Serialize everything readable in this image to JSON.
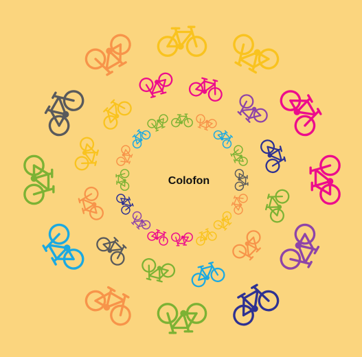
{
  "center_label": "Colofon"
}
